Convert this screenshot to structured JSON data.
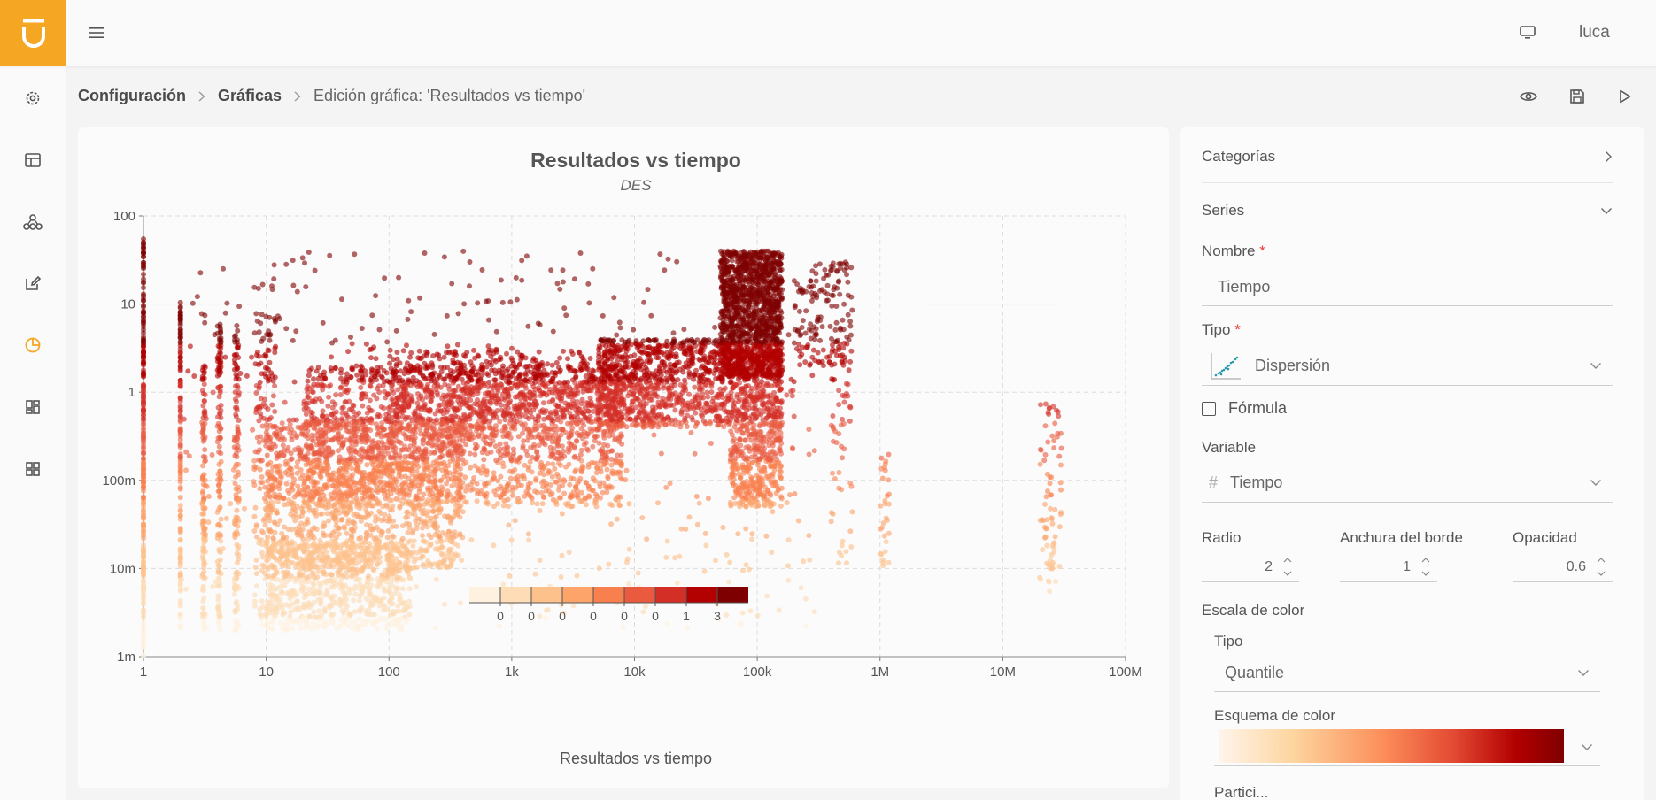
{
  "app": {
    "user": "luca"
  },
  "breadcrumb": {
    "level1": "Configuración",
    "level2": "Gráficas",
    "current": "Edición gráfica: 'Resultados vs tiempo'"
  },
  "chart": {
    "title": "Resultados vs tiempo",
    "subtitle": "DES",
    "legend_title": "Resultados vs tiempo"
  },
  "chart_data": {
    "type": "scatter",
    "title": "Resultados vs tiempo",
    "subtitle": "DES",
    "x_scale": "log",
    "y_scale": "log",
    "xlim": [
      1,
      100000000
    ],
    "ylim": [
      0.001,
      100
    ],
    "x_ticks": [
      "1",
      "10",
      "100",
      "1k",
      "10k",
      "100k",
      "1M",
      "10M",
      "100M"
    ],
    "y_ticks": [
      "1m",
      "10m",
      "100m",
      "1",
      "10",
      "100"
    ],
    "grid": true,
    "marker_radius": 2,
    "opacity": 0.6,
    "color_scale": {
      "type": "Quantile",
      "colors": [
        "#fff1e0",
        "#fedcb5",
        "#fdc28c",
        "#fca46a",
        "#f8804f",
        "#ea5a3f",
        "#d32f27",
        "#b30000",
        "#7f0000"
      ],
      "tick_labels": [
        "0",
        "0",
        "0",
        "0",
        "0",
        "0",
        "1",
        "3"
      ],
      "title": "Resultados vs tiempo"
    },
    "clusters": [
      {
        "x": [
          1,
          1
        ],
        "y": [
          0.001,
          60
        ],
        "n": 260
      },
      {
        "x": [
          2,
          2
        ],
        "y": [
          0.002,
          15
        ],
        "n": 140
      },
      {
        "x": [
          3,
          3.2
        ],
        "y": [
          0.002,
          2
        ],
        "n": 120
      },
      {
        "x": [
          4,
          4.3
        ],
        "y": [
          0.002,
          6
        ],
        "n": 130
      },
      {
        "x": [
          5.5,
          6
        ],
        "y": [
          0.002,
          5
        ],
        "n": 130
      },
      {
        "x": [
          8,
          12
        ],
        "y": [
          0.002,
          8
        ],
        "n": 180
      },
      {
        "x": [
          10,
          150
        ],
        "y": [
          0.002,
          0.02
        ],
        "n": 700
      },
      {
        "x": [
          10,
          400
        ],
        "y": [
          0.01,
          0.5
        ],
        "n": 1300
      },
      {
        "x": [
          20,
          8000
        ],
        "y": [
          0.05,
          2
        ],
        "n": 1700
      },
      {
        "x": [
          100,
          8000
        ],
        "y": [
          0.3,
          3
        ],
        "n": 700
      },
      {
        "x": [
          5000,
          60000
        ],
        "y": [
          0.4,
          4
        ],
        "n": 900
      },
      {
        "x": [
          50000,
          160000
        ],
        "y": [
          1.5,
          40
        ],
        "n": 1300
      },
      {
        "x": [
          60000,
          160000
        ],
        "y": [
          0.05,
          3
        ],
        "n": 700
      },
      {
        "x": [
          200000,
          600000
        ],
        "y": [
          2,
          30
        ],
        "n": 160
      },
      {
        "x": [
          400000,
          600000
        ],
        "y": [
          0.01,
          2
        ],
        "n": 50
      },
      {
        "x": [
          1000000,
          1200000
        ],
        "y": [
          0.01,
          0.2
        ],
        "n": 30
      },
      {
        "x": [
          20000000,
          30000000
        ],
        "y": [
          0.005,
          0.8
        ],
        "n": 80
      },
      {
        "x": [
          2,
          300000
        ],
        "y": [
          0.002,
          40
        ],
        "n": 500
      }
    ]
  },
  "panel": {
    "categorias": "Categorías",
    "series": "Series",
    "nombre_label": "Nombre",
    "nombre_value": "Tiempo",
    "tipo_label": "Tipo",
    "tipo_value": "Dispersión",
    "formula_label": "Fórmula",
    "variable_label": "Variable",
    "variable_value": "Tiempo",
    "radio_label": "Radio",
    "radio_value": "2",
    "borde_label": "Anchura del borde",
    "borde_value": "1",
    "opacidad_label": "Opacidad",
    "opacidad_value": "0.6",
    "escala_label": "Escala de color",
    "escala_tipo_label": "Tipo",
    "escala_tipo_value": "Quantile",
    "esquema_label": "Esquema de color",
    "partial_label": "Partici..."
  },
  "colors": {
    "accent": "#f5a623",
    "required": "#e53935"
  }
}
